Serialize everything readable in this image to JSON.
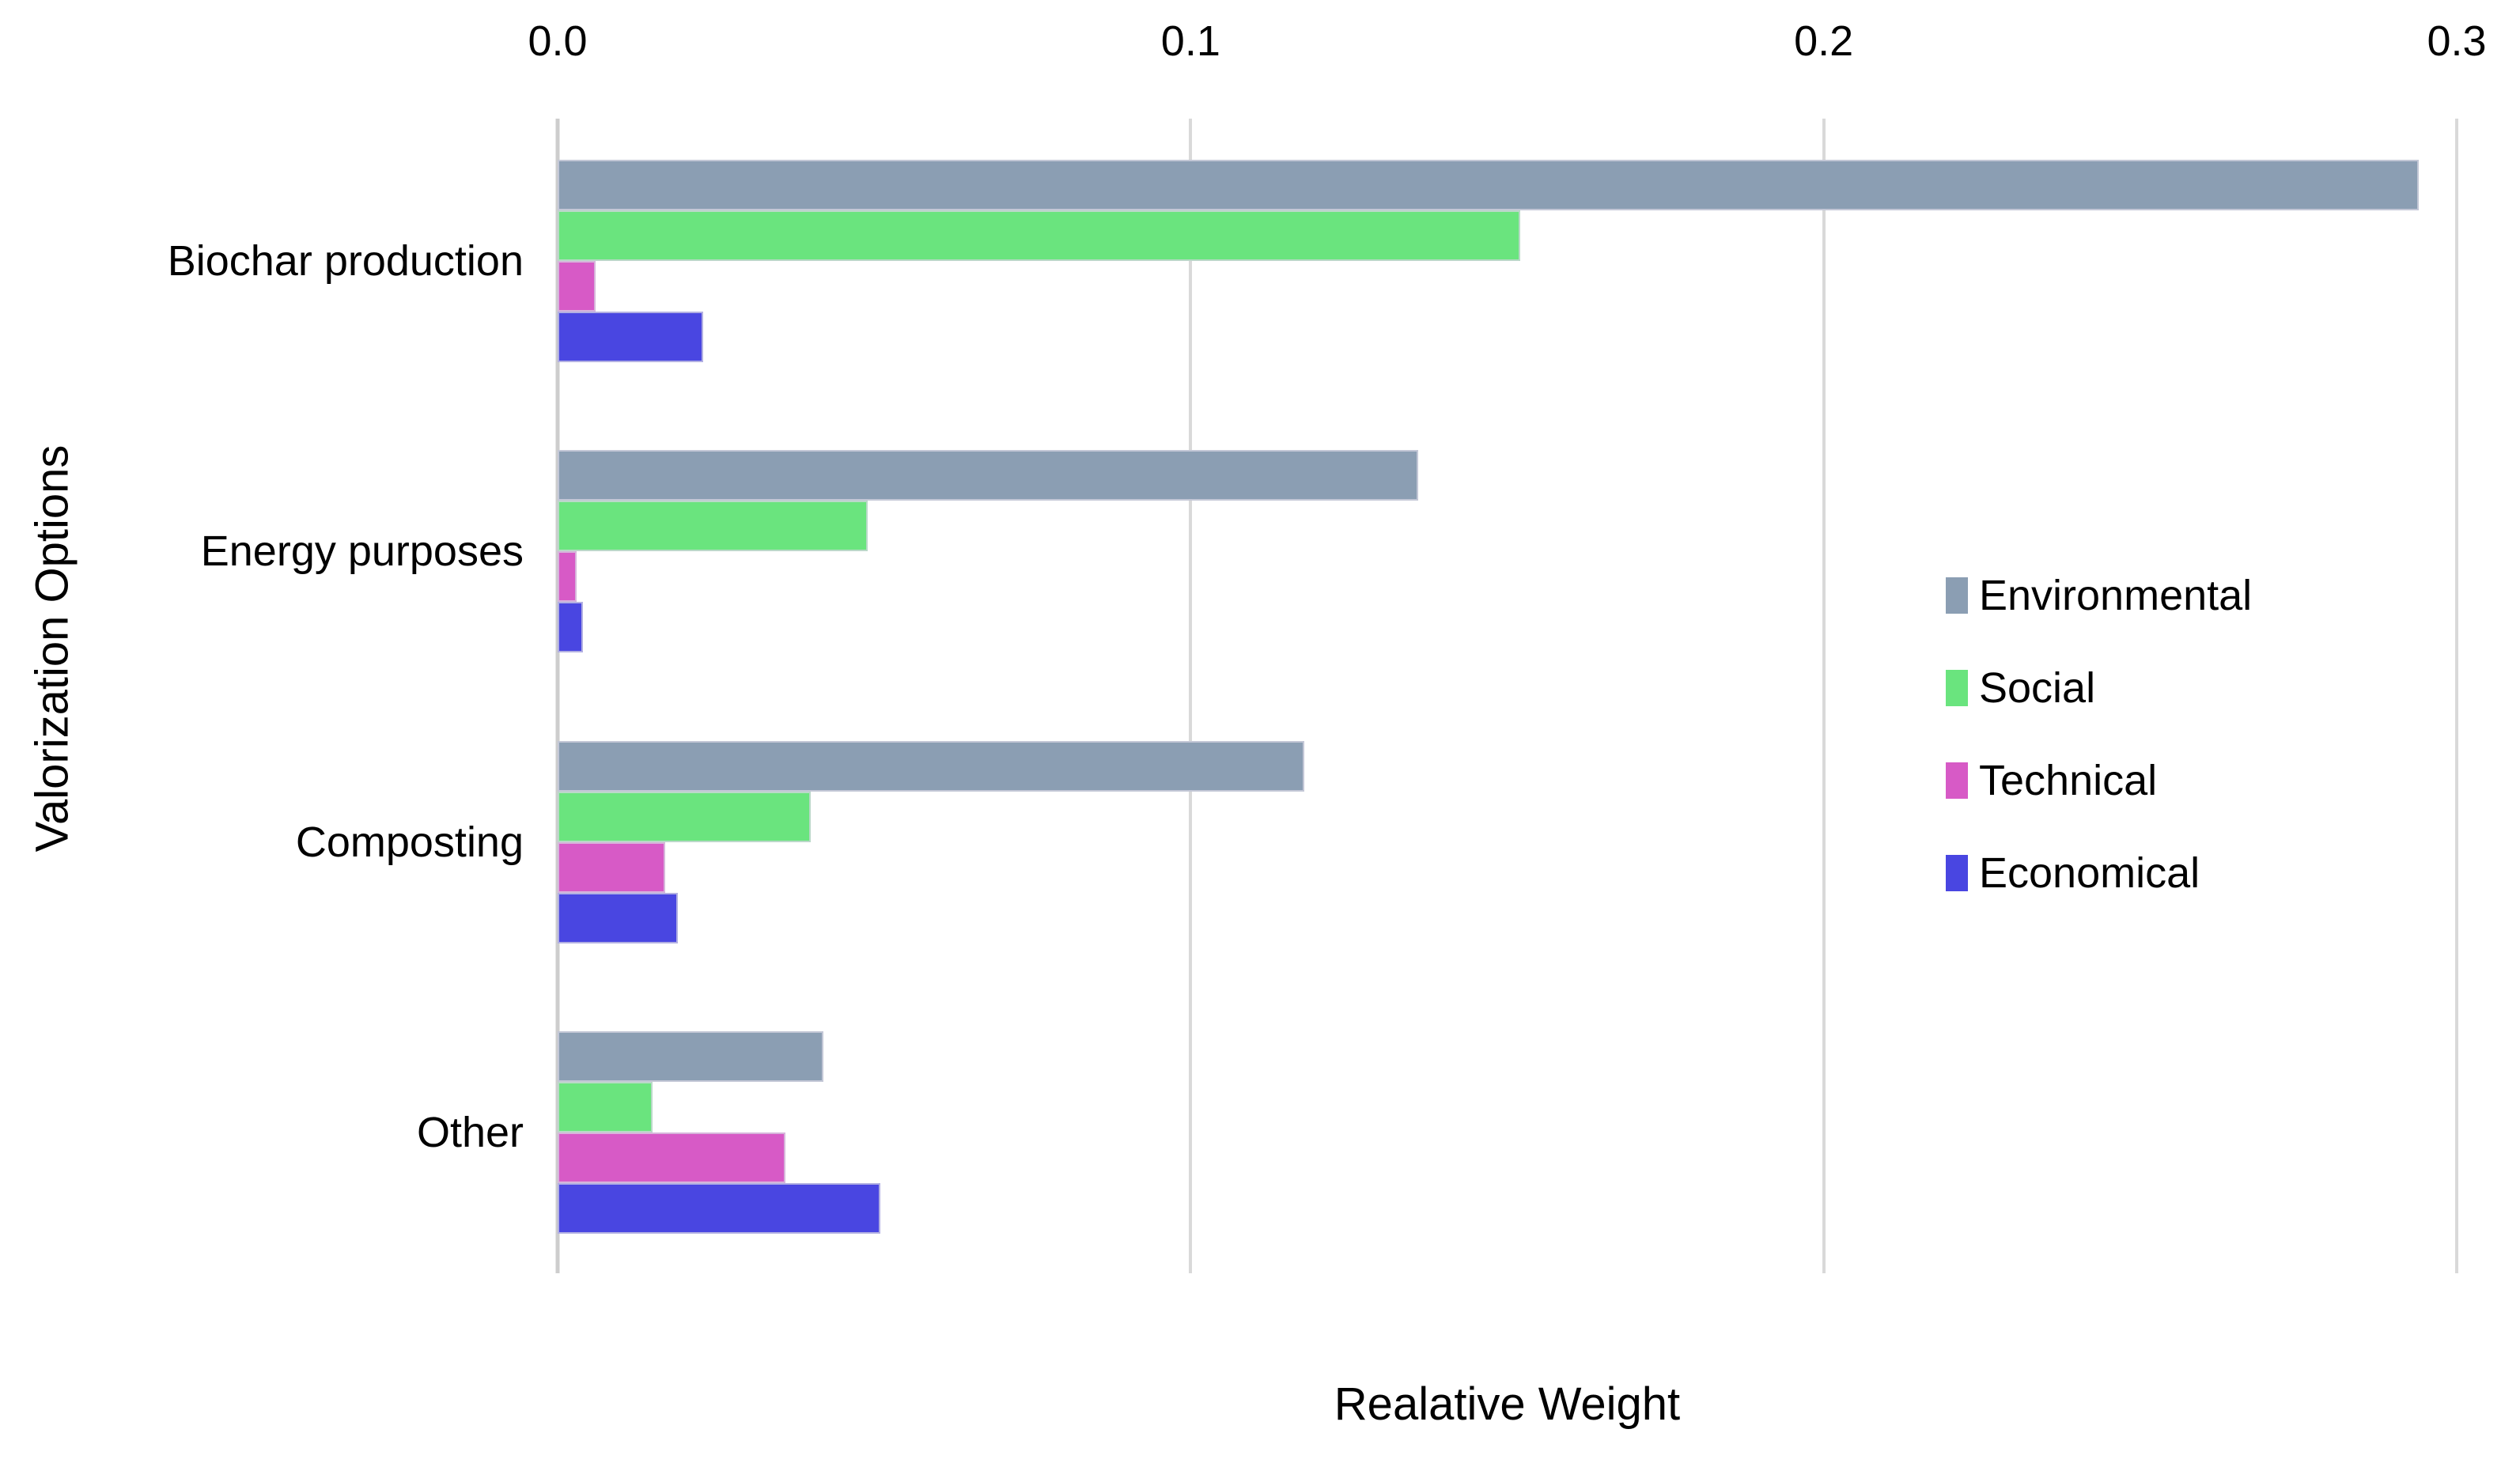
{
  "chart_data": {
    "type": "bar",
    "orientation": "horizontal",
    "xlabel": "Realative Weight",
    "ylabel": "Valorization Options",
    "xlim": [
      0,
      0.3
    ],
    "xticks": [
      0,
      0.1,
      0.2,
      0.3
    ],
    "xtick_labels": [
      "0.0",
      "0.1",
      "0.2",
      "0.3"
    ],
    "categories": [
      "Biochar production",
      "Energy purposes",
      "Composting",
      "Other"
    ],
    "series": [
      {
        "name": "Environmental",
        "color": "#8B9EB3",
        "values": [
          0.294,
          0.136,
          0.118,
          0.042
        ]
      },
      {
        "name": "Social",
        "color": "#6AE47E",
        "values": [
          0.152,
          0.049,
          0.04,
          0.015
        ]
      },
      {
        "name": "Technical",
        "color": "#D75AC6",
        "values": [
          0.006,
          0.003,
          0.017,
          0.036
        ]
      },
      {
        "name": "Economical",
        "color": "#4946E1",
        "values": [
          0.023,
          0.004,
          0.019,
          0.051
        ]
      }
    ],
    "legend_position": "right",
    "grid": "vertical",
    "gridline_color": "#D9D9D9",
    "axis_line_color": "#CDCDCD",
    "background_color": "#FFFFFF",
    "text_color": "#000000"
  }
}
